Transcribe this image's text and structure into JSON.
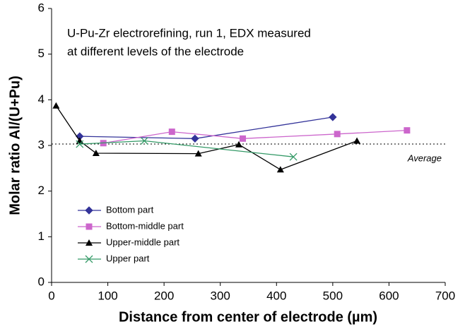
{
  "chart_data": {
    "type": "line",
    "title": [
      "U-Pu-Zr electrorefining, run 1, EDX measured",
      "at different levels of the electrode"
    ],
    "xlabel": "Distance from center of electrode (µm)",
    "ylabel": "Molar ratio Al/(U+Pu)",
    "xlim": [
      0,
      700
    ],
    "xticks": [
      0,
      100,
      200,
      300,
      400,
      500,
      600,
      700
    ],
    "ylim": [
      0,
      6
    ],
    "yticks": [
      0,
      1,
      2,
      3,
      4,
      5,
      6
    ],
    "reference_line": {
      "value": 3.03,
      "label": "Average"
    },
    "legend": "lower-left",
    "series": [
      {
        "name": "Bottom part",
        "color": "#333399",
        "marker": "diamond",
        "x": [
          50,
          255,
          500
        ],
        "values": [
          3.2,
          3.15,
          3.62
        ]
      },
      {
        "name": "Bottom-middle part",
        "color": "#cc66cc",
        "marker": "square",
        "x": [
          92,
          214,
          340,
          508,
          632
        ],
        "values": [
          3.05,
          3.3,
          3.15,
          3.25,
          3.33
        ]
      },
      {
        "name": "Upper-middle part",
        "color": "#000000",
        "marker": "triangle",
        "x": [
          8,
          50,
          79,
          261,
          333,
          407,
          543
        ],
        "values": [
          3.87,
          3.1,
          2.83,
          2.82,
          3.02,
          2.47,
          3.1
        ]
      },
      {
        "name": "Upper part",
        "color": "#339966",
        "marker": "x",
        "x": [
          50,
          165,
          430
        ],
        "values": [
          3.03,
          3.1,
          2.75
        ]
      }
    ]
  }
}
